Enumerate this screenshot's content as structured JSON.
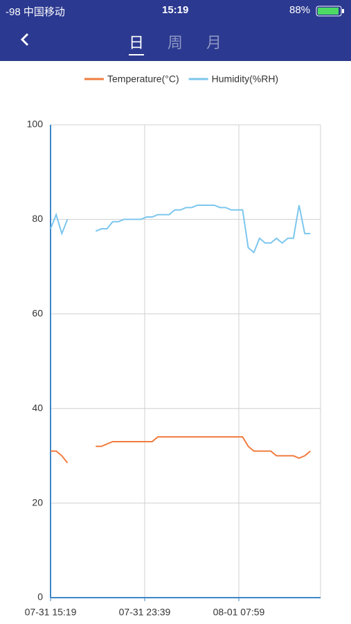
{
  "status_bar": {
    "carrier": "-98 中国移动",
    "time": "15:19",
    "battery": "88%"
  },
  "nav": {
    "tabs": [
      "日",
      "周",
      "月"
    ]
  },
  "chart_data": {
    "type": "line",
    "x": [
      0,
      30,
      60,
      90,
      120,
      150,
      180,
      210,
      240,
      270,
      300,
      330,
      360,
      390,
      420,
      450,
      480,
      510,
      540,
      570,
      600,
      630,
      660,
      690,
      720,
      750,
      780,
      810,
      840,
      870,
      900,
      930,
      960,
      990,
      1020,
      1050,
      1080,
      1110,
      1140,
      1170,
      1200,
      1230,
      1260,
      1290,
      1320,
      1350,
      1380
    ],
    "series": [
      {
        "name": "Temperature(°C)",
        "color": "#f07c3e",
        "values": [
          31,
          31,
          30,
          28.5,
          null,
          null,
          null,
          null,
          32,
          32,
          32.5,
          33,
          33,
          33,
          33,
          33,
          33,
          33,
          33,
          34,
          34,
          34,
          34,
          34,
          34,
          34,
          34,
          34,
          34,
          34,
          34,
          34,
          34,
          34,
          34,
          32,
          31,
          31,
          31,
          31,
          30,
          30,
          30,
          30,
          29.5,
          30,
          31
        ]
      },
      {
        "name": "Humidity(%RH)",
        "color": "#7cc6ee",
        "values": [
          78,
          81,
          77,
          80,
          null,
          null,
          null,
          null,
          77.5,
          78,
          78,
          79.5,
          79.5,
          80,
          80,
          80,
          80,
          80.5,
          80.5,
          81,
          81,
          81,
          82,
          82,
          82.5,
          82.5,
          83,
          83,
          83,
          83,
          82.5,
          82.5,
          82,
          82,
          82,
          74,
          73,
          76,
          75,
          75,
          76,
          75,
          76,
          76,
          83,
          77,
          77
        ]
      }
    ],
    "xlim": [
      0,
      1434
    ],
    "xticks": [
      {
        "value": 0,
        "label": "07-31 15:19"
      },
      {
        "value": 500,
        "label": "07-31 23:39"
      },
      {
        "value": 1000,
        "label": "08-01 07:59"
      }
    ],
    "ylim": [
      0,
      100
    ],
    "yticks": [
      0,
      20,
      40,
      60,
      80,
      100
    ],
    "grid": true
  }
}
